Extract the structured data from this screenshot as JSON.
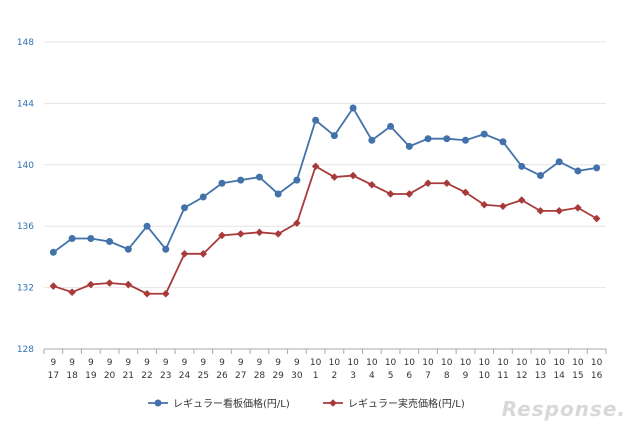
{
  "chart_data": {
    "type": "line",
    "title": "",
    "xlabel": "",
    "ylabel": "",
    "ylim": [
      128,
      148
    ],
    "yticks": [
      "128",
      "132",
      "136",
      "140",
      "144",
      "148"
    ],
    "grid": true,
    "legend_position": "bottom",
    "categories": [
      {
        "month": "9",
        "day": "17"
      },
      {
        "month": "9",
        "day": "18"
      },
      {
        "month": "9",
        "day": "19"
      },
      {
        "month": "9",
        "day": "20"
      },
      {
        "month": "9",
        "day": "21"
      },
      {
        "month": "9",
        "day": "22"
      },
      {
        "month": "9",
        "day": "23"
      },
      {
        "month": "9",
        "day": "24"
      },
      {
        "month": "9",
        "day": "25"
      },
      {
        "month": "9",
        "day": "26"
      },
      {
        "month": "9",
        "day": "27"
      },
      {
        "month": "9",
        "day": "28"
      },
      {
        "month": "9",
        "day": "29"
      },
      {
        "month": "9",
        "day": "30"
      },
      {
        "month": "10",
        "day": "1"
      },
      {
        "month": "10",
        "day": "2"
      },
      {
        "month": "10",
        "day": "3"
      },
      {
        "month": "10",
        "day": "4"
      },
      {
        "month": "10",
        "day": "5"
      },
      {
        "month": "10",
        "day": "6"
      },
      {
        "month": "10",
        "day": "7"
      },
      {
        "month": "10",
        "day": "8"
      },
      {
        "month": "10",
        "day": "9"
      },
      {
        "month": "10",
        "day": "10"
      },
      {
        "month": "10",
        "day": "11"
      },
      {
        "month": "10",
        "day": "12"
      },
      {
        "month": "10",
        "day": "13"
      },
      {
        "month": "10",
        "day": "14"
      },
      {
        "month": "10",
        "day": "15"
      },
      {
        "month": "10",
        "day": "16"
      }
    ],
    "series": [
      {
        "name": "レギュラー看板価格(円/L)",
        "color": "#4372aa",
        "marker": "circle",
        "values": [
          134.3,
          135.2,
          135.2,
          135.0,
          134.5,
          136.0,
          134.5,
          137.2,
          137.9,
          138.8,
          139.0,
          139.2,
          138.1,
          139.0,
          142.9,
          141.9,
          143.7,
          141.6,
          142.5,
          141.2,
          141.7,
          141.7,
          141.6,
          142.0,
          141.5,
          139.9,
          139.3,
          140.2,
          139.6,
          139.8
        ]
      },
      {
        "name": "レギュラー実売価格(円/L)",
        "color": "#a83a3a",
        "marker": "diamond",
        "values": [
          132.1,
          131.7,
          132.2,
          132.3,
          132.2,
          131.6,
          131.6,
          134.2,
          134.2,
          135.4,
          135.5,
          135.6,
          135.5,
          136.2,
          139.9,
          139.2,
          139.3,
          138.7,
          138.1,
          138.1,
          138.8,
          138.8,
          138.2,
          137.4,
          137.3,
          137.7,
          137.0,
          137.0,
          137.2,
          136.5
        ]
      }
    ]
  },
  "watermark": "Response."
}
